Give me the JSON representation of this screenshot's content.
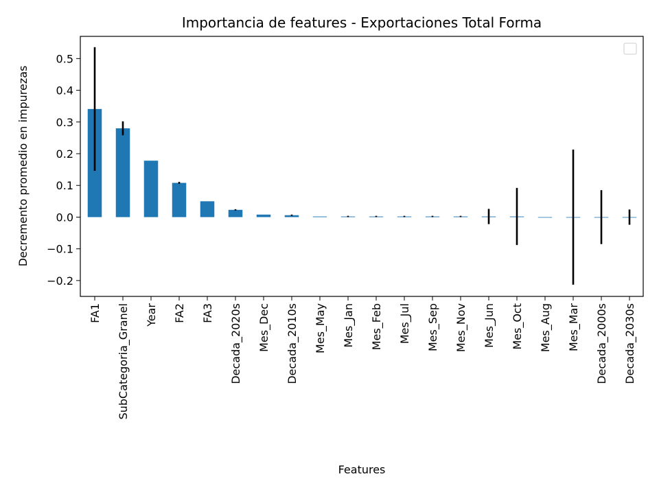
{
  "chart_data": {
    "type": "bar",
    "title": "Importancia de features - Exportaciones Total Forma",
    "xlabel": "Features",
    "ylabel": "Decremento promedio en impurezas",
    "ylim": [
      -0.25,
      0.57
    ],
    "yticks": [
      -0.2,
      -0.1,
      0.0,
      0.1,
      0.2,
      0.3,
      0.4,
      0.5
    ],
    "ytick_labels": [
      "−0.2",
      "−0.1",
      "0.0",
      "0.1",
      "0.2",
      "0.3",
      "0.4",
      "0.5"
    ],
    "categories": [
      "FA1",
      "SubCategoria_Granel",
      "Year",
      "FA2",
      "FA3",
      "Decada_2020s",
      "Mes_Dec",
      "Decada_2010s",
      "Mes_May",
      "Mes_Jan",
      "Mes_Feb",
      "Mes_Jul",
      "Mes_Sep",
      "Mes_Nov",
      "Mes_Jun",
      "Mes_Oct",
      "Mes_Aug",
      "Mes_Mar",
      "Decada_2000s",
      "Decada_2030s"
    ],
    "values": [
      0.341,
      0.28,
      0.178,
      0.108,
      0.05,
      0.023,
      0.008,
      0.006,
      0.002,
      0.002,
      0.002,
      0.002,
      0.002,
      0.002,
      0.002,
      0.002,
      0.0,
      0.0,
      0.0,
      0.0
    ],
    "errors": [
      0.195,
      0.022,
      0.0,
      0.003,
      0.0,
      0.002,
      0.0,
      0.002,
      0.0,
      0.002,
      0.002,
      0.002,
      0.002,
      0.002,
      0.024,
      0.09,
      0.0,
      0.213,
      0.085,
      0.024
    ],
    "bar_color": "#1f77b4",
    "error_color": "#000000",
    "legend": "top-right",
    "grid": false
  }
}
